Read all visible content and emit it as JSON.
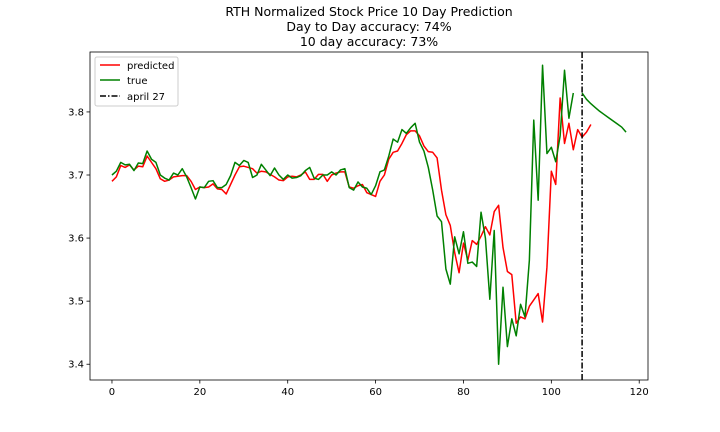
{
  "chart_data": {
    "type": "line",
    "title": "RTH Normalized Stock Price 10 Day Prediction",
    "subtitle_lines": [
      "Day to Day accuracy: 74%",
      "10 day accuracy: 73%"
    ],
    "xlabel": "",
    "ylabel": "",
    "xlim": [
      -5,
      122
    ],
    "ylim": [
      3.375,
      3.895
    ],
    "xticks": [
      0,
      20,
      40,
      60,
      80,
      100,
      120
    ],
    "yticks": [
      3.4,
      3.5,
      3.6,
      3.7,
      3.8
    ],
    "ytick_labels": [
      "3.4",
      "3.5",
      "3.6",
      "3.7",
      "3.8"
    ],
    "grid": false,
    "legend_position": "top-left",
    "series": [
      {
        "name": "predicted",
        "color": "#ff0000",
        "x_start": 0,
        "values": [
          3.69,
          3.697,
          3.715,
          3.712,
          3.716,
          3.708,
          3.714,
          3.713,
          3.73,
          3.72,
          3.71,
          3.694,
          3.69,
          3.692,
          3.697,
          3.698,
          3.699,
          3.699,
          3.69,
          3.677,
          3.681,
          3.68,
          3.681,
          3.686,
          3.678,
          3.677,
          3.67,
          3.685,
          3.7,
          3.713,
          3.714,
          3.712,
          3.71,
          3.703,
          3.706,
          3.705,
          3.701,
          3.697,
          3.692,
          3.691,
          3.697,
          3.698,
          3.697,
          3.7,
          3.705,
          3.693,
          3.693,
          3.701,
          3.701,
          3.69,
          3.7,
          3.703,
          3.705,
          3.705,
          3.681,
          3.679,
          3.683,
          3.685,
          3.672,
          3.669,
          3.666,
          3.69,
          3.7,
          3.725,
          3.736,
          3.738,
          3.75,
          3.764,
          3.77,
          3.77,
          3.762,
          3.746,
          3.737,
          3.736,
          3.727,
          3.676,
          3.637,
          3.62,
          3.577,
          3.545,
          3.592,
          3.565,
          3.596,
          3.59,
          3.603,
          3.618,
          3.605,
          3.642,
          3.652,
          3.585,
          3.547,
          3.542,
          3.465,
          3.475,
          3.472,
          3.492,
          3.502,
          3.512,
          3.467,
          3.554,
          3.706,
          3.685,
          3.822,
          3.75,
          3.782,
          3.74,
          3.772,
          3.76,
          3.768,
          3.78
        ]
      },
      {
        "name": "true",
        "color": "#008000",
        "x_start": 0,
        "values": [
          3.7,
          3.706,
          3.72,
          3.716,
          3.717,
          3.707,
          3.719,
          3.718,
          3.738,
          3.725,
          3.72,
          3.7,
          3.695,
          3.692,
          3.703,
          3.7,
          3.71,
          3.697,
          3.68,
          3.662,
          3.681,
          3.68,
          3.69,
          3.691,
          3.68,
          3.68,
          3.685,
          3.699,
          3.72,
          3.715,
          3.723,
          3.72,
          3.696,
          3.7,
          3.717,
          3.708,
          3.699,
          3.711,
          3.7,
          3.693,
          3.7,
          3.695,
          3.696,
          3.699,
          3.707,
          3.712,
          3.695,
          3.693,
          3.7,
          3.7,
          3.705,
          3.7,
          3.708,
          3.71,
          3.68,
          3.676,
          3.689,
          3.681,
          3.679,
          3.669,
          3.683,
          3.705,
          3.708,
          3.73,
          3.757,
          3.752,
          3.772,
          3.766,
          3.775,
          3.782,
          3.752,
          3.738,
          3.712,
          3.676,
          3.635,
          3.626,
          3.551,
          3.527,
          3.602,
          3.575,
          3.61,
          3.56,
          3.562,
          3.555,
          3.641,
          3.6,
          3.503,
          3.612,
          3.4,
          3.522,
          3.428,
          3.472,
          3.445,
          3.495,
          3.475,
          3.565,
          3.787,
          3.66,
          3.874,
          3.734,
          3.744,
          3.721,
          3.762,
          3.866,
          3.79,
          3.83
        ]
      },
      {
        "name": "true",
        "color": "#008000",
        "x_start": 107,
        "values": [
          3.83,
          3.82,
          3.813,
          3.807,
          3.801,
          3.796,
          3.791,
          3.786,
          3.781,
          3.776,
          3.768
        ]
      }
    ],
    "vline": {
      "name": "april 27",
      "x": 107,
      "color": "#000000",
      "style": "dashdot"
    }
  }
}
